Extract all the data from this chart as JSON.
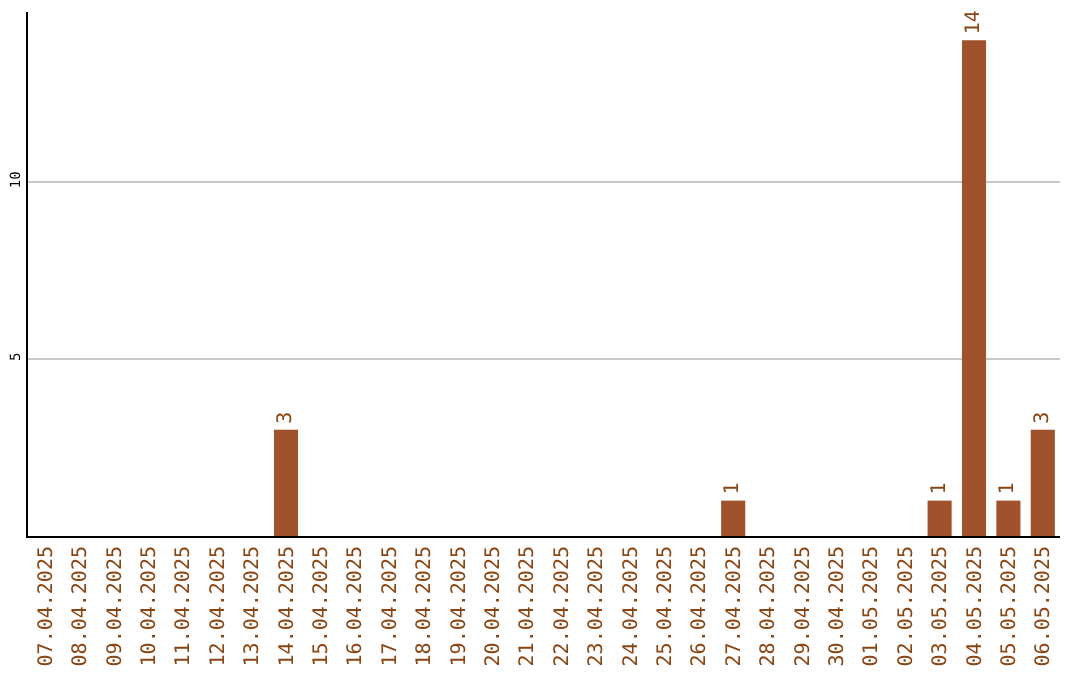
{
  "chart_data": {
    "type": "bar",
    "categories": [
      "07.04.2025",
      "08.04.2025",
      "09.04.2025",
      "10.04.2025",
      "11.04.2025",
      "12.04.2025",
      "13.04.2025",
      "14.04.2025",
      "15.04.2025",
      "16.04.2025",
      "17.04.2025",
      "18.04.2025",
      "19.04.2025",
      "20.04.2025",
      "21.04.2025",
      "22.04.2025",
      "23.04.2025",
      "24.04.2025",
      "25.04.2025",
      "26.04.2025",
      "27.04.2025",
      "28.04.2025",
      "29.04.2025",
      "30.04.2025",
      "01.05.2025",
      "02.05.2025",
      "03.05.2025",
      "04.05.2025",
      "05.05.2025",
      "06.05.2025"
    ],
    "values": [
      0,
      0,
      0,
      0,
      0,
      0,
      0,
      3,
      0,
      0,
      0,
      0,
      0,
      0,
      0,
      0,
      0,
      0,
      0,
      0,
      1,
      0,
      0,
      0,
      0,
      0,
      1,
      14,
      1,
      3
    ],
    "value_labels": [
      null,
      null,
      null,
      null,
      null,
      null,
      null,
      "3",
      null,
      null,
      null,
      null,
      null,
      null,
      null,
      null,
      null,
      null,
      null,
      null,
      "1",
      null,
      null,
      null,
      null,
      null,
      "1",
      "14",
      "1",
      "3"
    ],
    "color": "#a0522d",
    "ylim": [
      0,
      14.8
    ],
    "yticks": [
      5,
      10
    ],
    "grid": "y"
  }
}
